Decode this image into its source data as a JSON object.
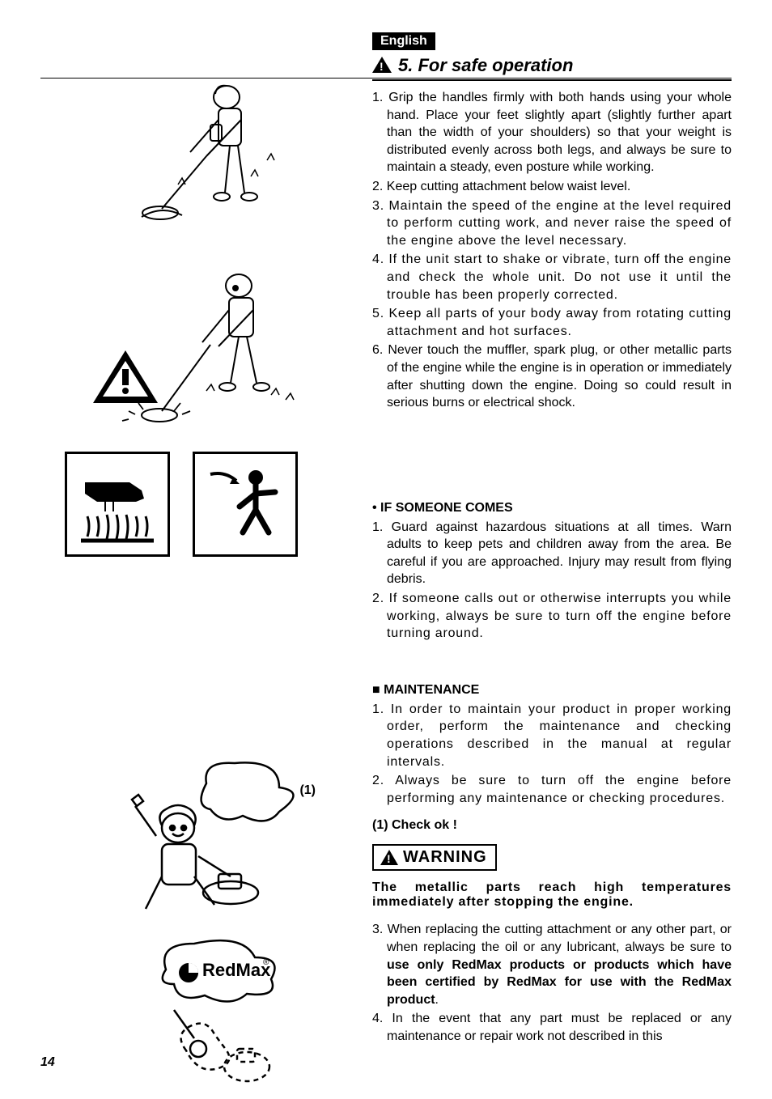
{
  "language": "English",
  "section": {
    "number": "5.",
    "title": "For safe operation"
  },
  "list1": [
    {
      "n": "1.",
      "text": "Grip the handles firmly with both hands using your whole hand. Place your feet slightly apart (slightly further apart than the width of your shoulders) so that your weight is distributed evenly across both legs, and always be sure to maintain a steady, even posture while working."
    },
    {
      "n": "2.",
      "text": "Keep cutting attachment below waist level."
    },
    {
      "n": "3.",
      "text": "Maintain the speed of the engine at the level required to perform cutting work, and never raise the speed of the engine above the level necessary.",
      "wide": true
    },
    {
      "n": "4.",
      "text": "If the unit start to shake or vibrate, turn off the engine and check the whole unit. Do not use it until the trouble has been properly corrected.",
      "wide": true
    },
    {
      "n": "5.",
      "text": "Keep all parts of your body away from rotating cutting attachment and hot surfaces.",
      "wide": true
    },
    {
      "n": "6.",
      "text": "Never touch the muffler, spark plug, or other metallic parts of the engine while the engine is in operation or immediately after shutting down the engine. Doing so could result in serious burns or electrical shock."
    }
  ],
  "sub1": {
    "heading": "IF SOMEONE COMES",
    "items": [
      {
        "n": "1.",
        "text": "Guard against hazardous situations at all times. Warn adults to keep pets and children away from the area. Be careful if you are approached. Injury may result from flying debris."
      },
      {
        "n": "2.",
        "text": "If someone calls out or otherwise interrupts you while working, always be sure to turn off the engine before turning around.",
        "wide": true
      }
    ]
  },
  "sub2": {
    "heading": "MAINTENANCE",
    "items": [
      {
        "n": "1.",
        "text": "In order to maintain your product in proper working order, perform the maintenance and checking operations described in the manual at regular intervals.",
        "wide": true
      },
      {
        "n": "2.",
        "text": "Always be sure to turn off the engine before performing any maintenance or checking procedures.",
        "wide": true
      }
    ]
  },
  "check_label": "(1) Check ok !",
  "warning_label": "WARNING",
  "warning_para": "The metallic parts reach high temperatures immediately after stopping the engine.",
  "list3": [
    {
      "n": "3.",
      "pre": "When replacing the cutting attachment or any other part, or when replacing the oil or any lubricant, always be sure to ",
      "bold": "use only RedMax  products or products which have been certified by RedMax for use with the RedMax product",
      "post": "."
    },
    {
      "n": "4.",
      "text": "In the event that any part must be replaced or any maintenance or repair work not described in this"
    }
  ],
  "fig_label": "(1)",
  "page_number": "14",
  "colors": {
    "text": "#000000",
    "bg": "#ffffff"
  }
}
